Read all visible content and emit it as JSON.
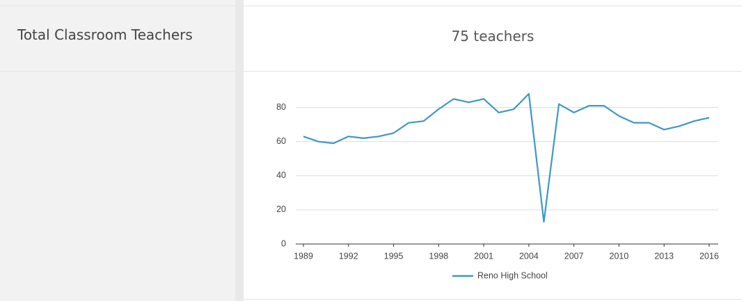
{
  "label": "Total Classroom Teachers",
  "value": "75 teachers",
  "chart_data": {
    "type": "line",
    "x": [
      1989,
      1990,
      1991,
      1992,
      1993,
      1994,
      1995,
      1996,
      1997,
      1998,
      1999,
      2000,
      2001,
      2002,
      2003,
      2004,
      2005,
      2006,
      2007,
      2008,
      2009,
      2010,
      2011,
      2012,
      2013,
      2014,
      2015,
      2016
    ],
    "series": [
      {
        "name": "Reno High School",
        "color": "#3d97c8",
        "values": [
          63,
          60,
          59,
          63,
          62,
          63,
          65,
          71,
          72,
          79,
          85,
          83,
          85,
          77,
          79,
          88,
          13,
          82,
          77,
          81,
          81,
          75,
          71,
          71,
          67,
          69,
          72,
          74
        ]
      }
    ],
    "xlim": [
      1989,
      2016
    ],
    "xticks": [
      1989,
      1992,
      1995,
      1998,
      2001,
      2004,
      2007,
      2010,
      2013,
      2016
    ],
    "ylim": [
      0,
      90
    ],
    "yticks": [
      0,
      20,
      40,
      60,
      80
    ],
    "grid": true,
    "legend": "bottom"
  }
}
